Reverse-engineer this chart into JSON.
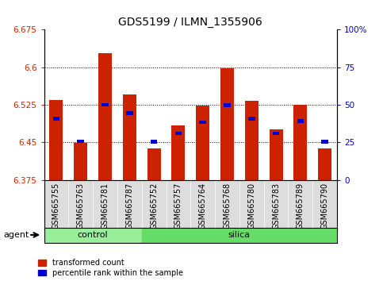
{
  "title": "GDS5199 / ILMN_1355906",
  "samples": [
    "GSM665755",
    "GSM665763",
    "GSM665781",
    "GSM665787",
    "GSM665752",
    "GSM665757",
    "GSM665764",
    "GSM665768",
    "GSM665780",
    "GSM665783",
    "GSM665789",
    "GSM665790"
  ],
  "groups": [
    "control",
    "control",
    "control",
    "control",
    "silica",
    "silica",
    "silica",
    "silica",
    "silica",
    "silica",
    "silica",
    "silica"
  ],
  "red_values": [
    6.535,
    6.448,
    6.628,
    6.545,
    6.438,
    6.483,
    6.523,
    6.598,
    6.532,
    6.475,
    6.525,
    6.438
  ],
  "blue_values": [
    6.497,
    6.452,
    6.525,
    6.508,
    6.451,
    6.468,
    6.49,
    6.524,
    6.497,
    6.468,
    6.492,
    6.451
  ],
  "ymin": 6.375,
  "ymax": 6.675,
  "yticks": [
    6.375,
    6.45,
    6.525,
    6.6,
    6.675
  ],
  "ytick_labels": [
    "6.375",
    "6.45",
    "6.525",
    "6.6",
    "6.675"
  ],
  "right_yticks": [
    0,
    25,
    50,
    75,
    100
  ],
  "right_ytick_labels": [
    "0",
    "25",
    "50",
    "75",
    "100%"
  ],
  "bar_color": "#cc2200",
  "dot_color": "#0000cc",
  "control_color": "#99ee99",
  "silica_color": "#66dd66",
  "bg_color": "#dddddd",
  "agent_label": "agent",
  "legend_red": "transformed count",
  "legend_blue": "percentile rank within the sample",
  "tick_color_left": "#cc2200",
  "tick_color_right": "#0000cc",
  "bar_width": 0.55,
  "n_control": 4,
  "n_silica": 8
}
